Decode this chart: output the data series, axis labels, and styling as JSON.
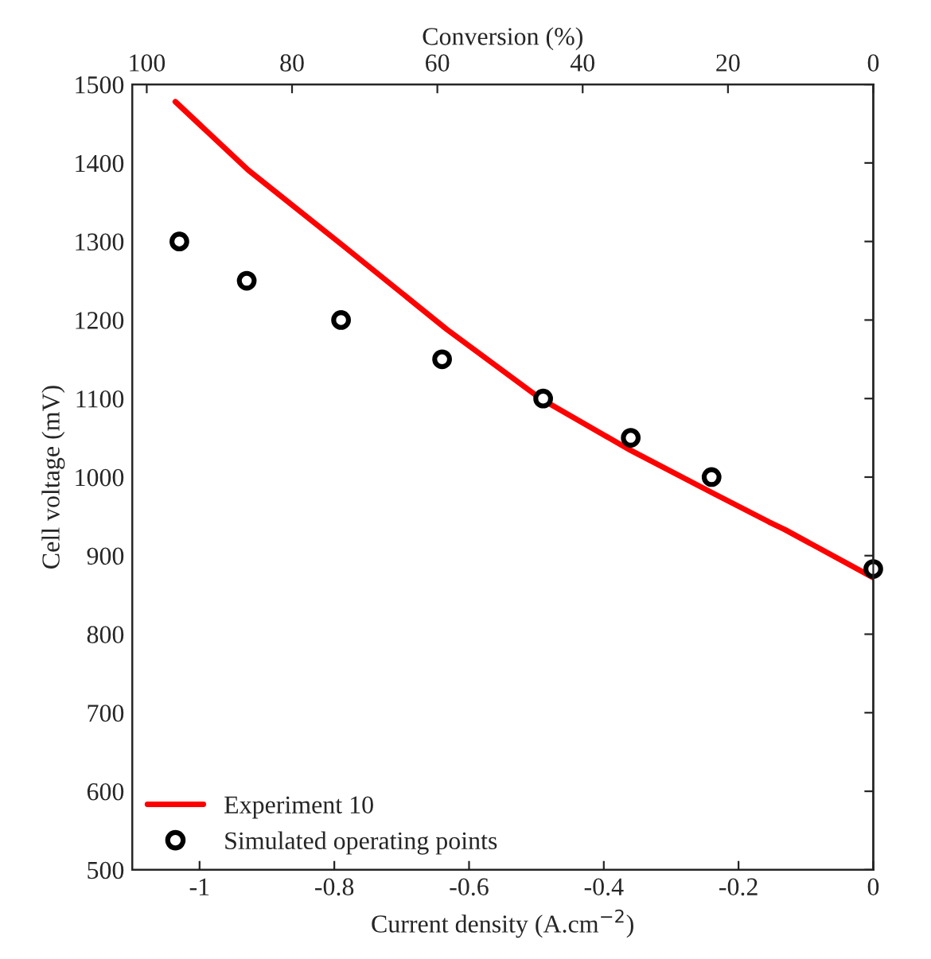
{
  "chart_data": {
    "type": "line",
    "xlabel": "Current density (A.cm$^{−2}$)",
    "ylabel": "Cell voltage (mV)",
    "x2label": "Conversion (%)",
    "xlim": [
      -1.1,
      0
    ],
    "xticks": [
      -1,
      -0.8,
      -0.6,
      -0.4,
      -0.2,
      0
    ],
    "x2lim": [
      102,
      0
    ],
    "x2ticks": [
      100,
      80,
      60,
      40,
      20,
      0
    ],
    "ylim": [
      500,
      1500
    ],
    "yticks": [
      500,
      600,
      700,
      800,
      900,
      1000,
      1100,
      1200,
      1300,
      1400,
      1500
    ],
    "grid": false,
    "legend": "bottom left",
    "series": [
      {
        "name": "Experiment 10",
        "color": "#ff0000",
        "marker": "none",
        "line_style": "solid",
        "x": [
          -1.036,
          -0.928,
          -0.786,
          -0.659,
          -0.633,
          -0.494,
          -0.36,
          -0.239,
          -0.155,
          -0.131,
          0
        ],
        "values": [
          1478,
          1391,
          1294,
          1206,
          1188,
          1100,
          1034,
          980,
          943,
          933,
          872
        ]
      },
      {
        "name": "Simulated operating points",
        "type": "scatter",
        "color": "#000000",
        "marker": "circle",
        "x": [
          -1.03,
          -0.93,
          -0.79,
          -0.64,
          -0.49,
          -0.36,
          -0.24,
          0
        ],
        "values": [
          1300,
          1250,
          1200,
          1150,
          1100,
          1050,
          1000,
          883
        ]
      }
    ]
  }
}
